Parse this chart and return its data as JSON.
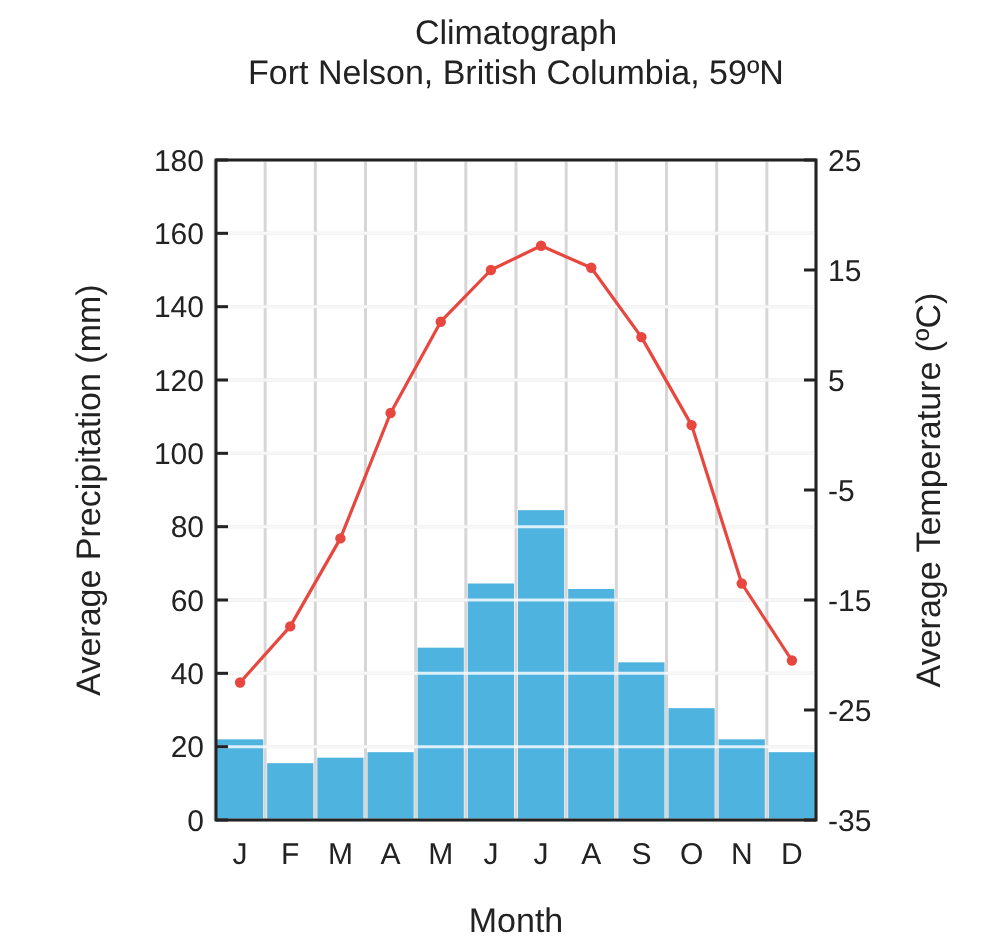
{
  "chart_data": {
    "type": "bar",
    "title": "Climatograph",
    "subtitle": "Fort Nelson, British Columbia, 59ºN",
    "xlabel": "Month",
    "ylabel": "Average Precipitation (mm)",
    "y2label": "Average Temperature (ºC)",
    "categories": [
      "J",
      "F",
      "M",
      "A",
      "M",
      "J",
      "J",
      "A",
      "S",
      "O",
      "N",
      "D"
    ],
    "series": [
      {
        "color": "#4fb3e0",
        "values": [
          22,
          15.5,
          17,
          18.5,
          47,
          64.5,
          84.5,
          63,
          43,
          30.5,
          22,
          18.5
        ]
      },
      {
        "type": "line",
        "axis": "y2",
        "color": "#e8473f",
        "marker": "circle",
        "values": [
          -22.5,
          -17.4,
          -9.4,
          2,
          10.3,
          15,
          17.2,
          15.2,
          8.9,
          0.9,
          -13.5,
          -20.5
        ]
      }
    ],
    "ylim": [
      0,
      180
    ],
    "yticks": [
      0,
      20,
      40,
      60,
      80,
      100,
      120,
      140,
      160,
      180
    ],
    "y2lim": [
      -35,
      25
    ],
    "y2ticks": [
      -35,
      -25,
      -15,
      -5,
      5,
      15,
      25
    ],
    "grid": true
  }
}
